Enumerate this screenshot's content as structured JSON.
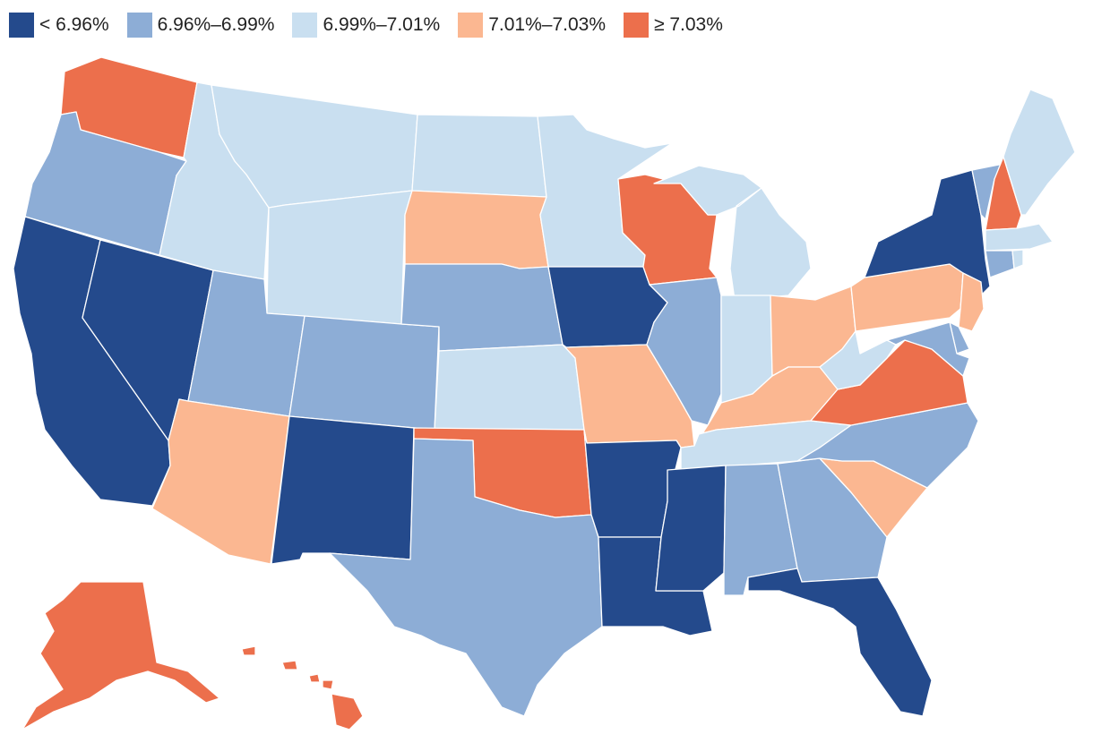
{
  "legend": [
    {
      "label": "< 6.96%",
      "color": "#244a8c"
    },
    {
      "label": "6.96%–6.99%",
      "color": "#8dadd6"
    },
    {
      "label": "6.99%–7.01%",
      "color": "#c9dff0"
    },
    {
      "label": "7.01%–7.03%",
      "color": "#fbb791"
    },
    {
      "label": "≥ 7.03%",
      "color": "#ec6f4c"
    }
  ],
  "states": [
    {
      "id": "WA",
      "bin": 4
    },
    {
      "id": "OR",
      "bin": 1
    },
    {
      "id": "CA",
      "bin": 0
    },
    {
      "id": "NV",
      "bin": 0
    },
    {
      "id": "ID",
      "bin": 2
    },
    {
      "id": "MT",
      "bin": 2
    },
    {
      "id": "WY",
      "bin": 2
    },
    {
      "id": "UT",
      "bin": 1
    },
    {
      "id": "AZ",
      "bin": 3
    },
    {
      "id": "CO",
      "bin": 1
    },
    {
      "id": "NM",
      "bin": 0
    },
    {
      "id": "ND",
      "bin": 2
    },
    {
      "id": "SD",
      "bin": 3
    },
    {
      "id": "NE",
      "bin": 1
    },
    {
      "id": "KS",
      "bin": 2
    },
    {
      "id": "OK",
      "bin": 4
    },
    {
      "id": "TX",
      "bin": 1
    },
    {
      "id": "MN",
      "bin": 2
    },
    {
      "id": "IA",
      "bin": 0
    },
    {
      "id": "MO",
      "bin": 3
    },
    {
      "id": "AR",
      "bin": 0
    },
    {
      "id": "LA",
      "bin": 0
    },
    {
      "id": "WI",
      "bin": 4
    },
    {
      "id": "IL",
      "bin": 1
    },
    {
      "id": "MI",
      "bin": 2
    },
    {
      "id": "IN",
      "bin": 2
    },
    {
      "id": "OH",
      "bin": 3
    },
    {
      "id": "KY",
      "bin": 3
    },
    {
      "id": "TN",
      "bin": 2
    },
    {
      "id": "MS",
      "bin": 0
    },
    {
      "id": "AL",
      "bin": 1
    },
    {
      "id": "GA",
      "bin": 1
    },
    {
      "id": "FL",
      "bin": 0
    },
    {
      "id": "SC",
      "bin": 3
    },
    {
      "id": "NC",
      "bin": 1
    },
    {
      "id": "VA",
      "bin": 4
    },
    {
      "id": "WV",
      "bin": 2
    },
    {
      "id": "PA",
      "bin": 3
    },
    {
      "id": "NY",
      "bin": 0
    },
    {
      "id": "VT",
      "bin": 1
    },
    {
      "id": "NH",
      "bin": 4
    },
    {
      "id": "ME",
      "bin": 2
    },
    {
      "id": "MA",
      "bin": 2
    },
    {
      "id": "CT",
      "bin": 1
    },
    {
      "id": "RI",
      "bin": 2
    },
    {
      "id": "NJ",
      "bin": 3
    },
    {
      "id": "DE",
      "bin": 1
    },
    {
      "id": "MD",
      "bin": 1
    },
    {
      "id": "AK",
      "bin": 4
    },
    {
      "id": "HI",
      "bin": 4
    }
  ]
}
